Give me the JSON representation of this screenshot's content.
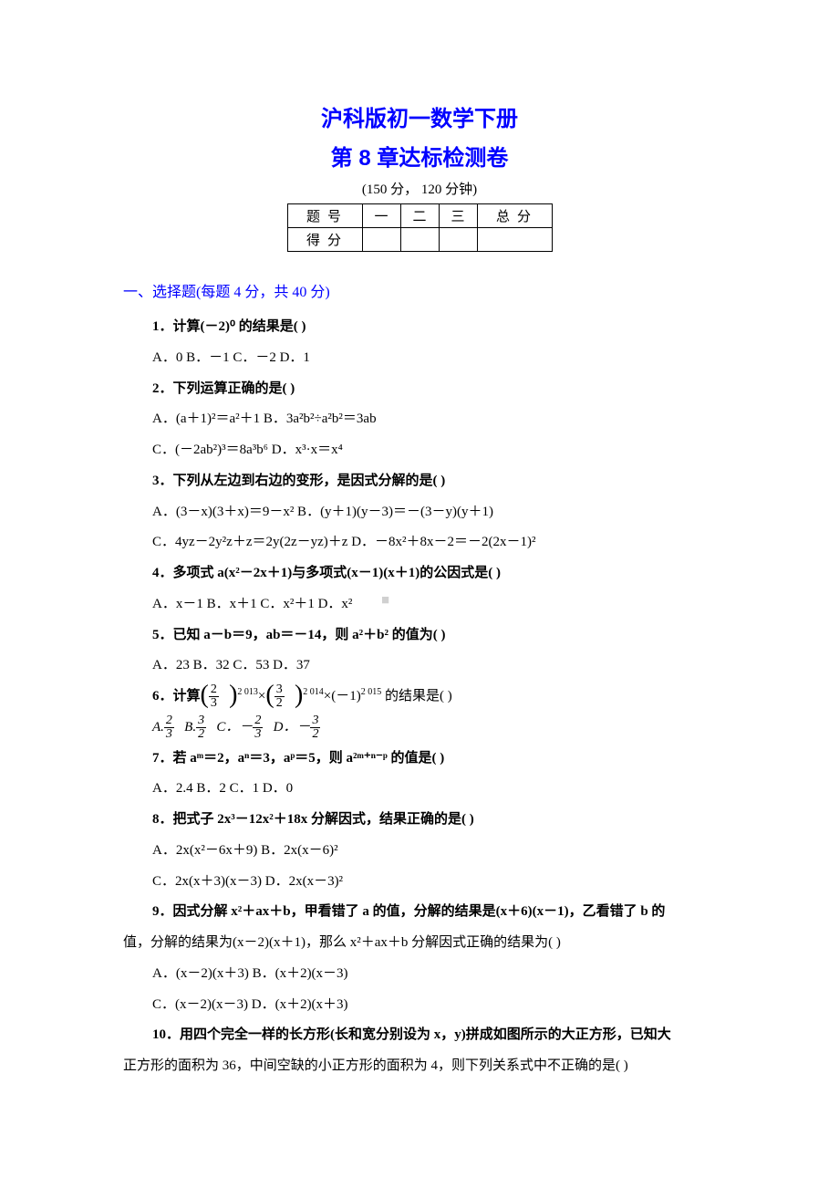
{
  "doc": {
    "title": "沪科版初一数学下册",
    "chapter_title": "第 8 章达标检测卷",
    "test_info": "(150 分，  120 分钟)",
    "watermark": "■"
  },
  "score_table": {
    "row1": {
      "label": "题号",
      "c1": "一",
      "c2": "二",
      "c3": "三",
      "total": "总分"
    },
    "row2": {
      "label": "得分",
      "c1": "",
      "c2": "",
      "c3": "",
      "total": ""
    }
  },
  "section1": {
    "header": "一、选择题(每题 4 分，共 40 分)"
  },
  "q1": {
    "text": "1．计算(－2)⁰ 的结果是(     )",
    "opts": "A．0   B．－1   C．－2   D．1"
  },
  "q2": {
    "text": "2．下列运算正确的是(     )",
    "optA": "A．(a＋1)²＝a²＋1   B．3a²b²÷a²b²＝3ab",
    "optC": "C．(－2ab²)³＝8a³b⁶   D．x³·x＝x⁴"
  },
  "q3": {
    "text": "3．下列从左边到右边的变形，是因式分解的是(      )",
    "optA": "A．(3－x)(3＋x)＝9－x²   B．(y＋1)(y－3)＝－(3－y)(y＋1)",
    "optC": "C．4yz－2y²z＋z＝2y(2z－yz)＋z   D．－8x²＋8x－2＝－2(2x－1)²"
  },
  "q4": {
    "text": "4．多项式 a(x²－2x＋1)与多项式(x－1)(x＋1)的公因式是(      )",
    "opts": "A．x－1   B．x＋1   C．x²＋1   D．x²"
  },
  "q5": {
    "text": "5．已知 a－b＝9，ab＝－14，则 a²＋b² 的值为(      )",
    "opts": "A．23   B．32   C．53   D．37"
  },
  "q6": {
    "text_prefix": "6．计算",
    "frac1_num": "2",
    "frac1_den": "3",
    "exp1": "2 013",
    "times1": "×",
    "frac2_num": "3",
    "frac2_den": "2",
    "exp2": "2 014",
    "times2": "×(－1)",
    "exp3": "2 015",
    "text_suffix": " 的结果是(      )",
    "optA_label": "A.",
    "optA_num": "2",
    "optA_den": "3",
    "optB_label": "B.",
    "optB_num": "3",
    "optB_den": "2",
    "optC_label": "C．－",
    "optC_num": "2",
    "optC_den": "3",
    "optD_label": "D．－",
    "optD_num": "3",
    "optD_den": "2"
  },
  "q7": {
    "text": "7．若 aᵐ＝2，aⁿ＝3，aᵖ＝5，则 a²ᵐ⁺ⁿ⁻ᵖ 的值是(      )",
    "opts": "A．2.4   B．2   C．1   D．0"
  },
  "q8": {
    "text": "8．把式子 2x³－12x²＋18x 分解因式，结果正确的是(     )",
    "optA": "A．2x(x²－6x＋9)   B．2x(x－6)²",
    "optC": "C．2x(x＋3)(x－3)   D．2x(x－3)²"
  },
  "q9": {
    "line1": "9．因式分解 x²＋ax＋b，甲看错了 a 的值，分解的结果是(x＋6)(x－1)，乙看错了 b 的",
    "line2": "值，分解的结果为(x－2)(x＋1)，那么 x²＋ax＋b 分解因式正确的结果为(      )",
    "optA": "A．(x－2)(x＋3)   B．(x＋2)(x－3)",
    "optC": "C．(x－2)(x－3)   D．(x＋2)(x＋3)"
  },
  "q10": {
    "line1": "10．用四个完全一样的长方形(长和宽分别设为 x，y)拼成如图所示的大正方形，已知大",
    "line2": "正方形的面积为 36，中间空缺的小正方形的面积为 4，则下列关系式中不正确的是(      )"
  }
}
